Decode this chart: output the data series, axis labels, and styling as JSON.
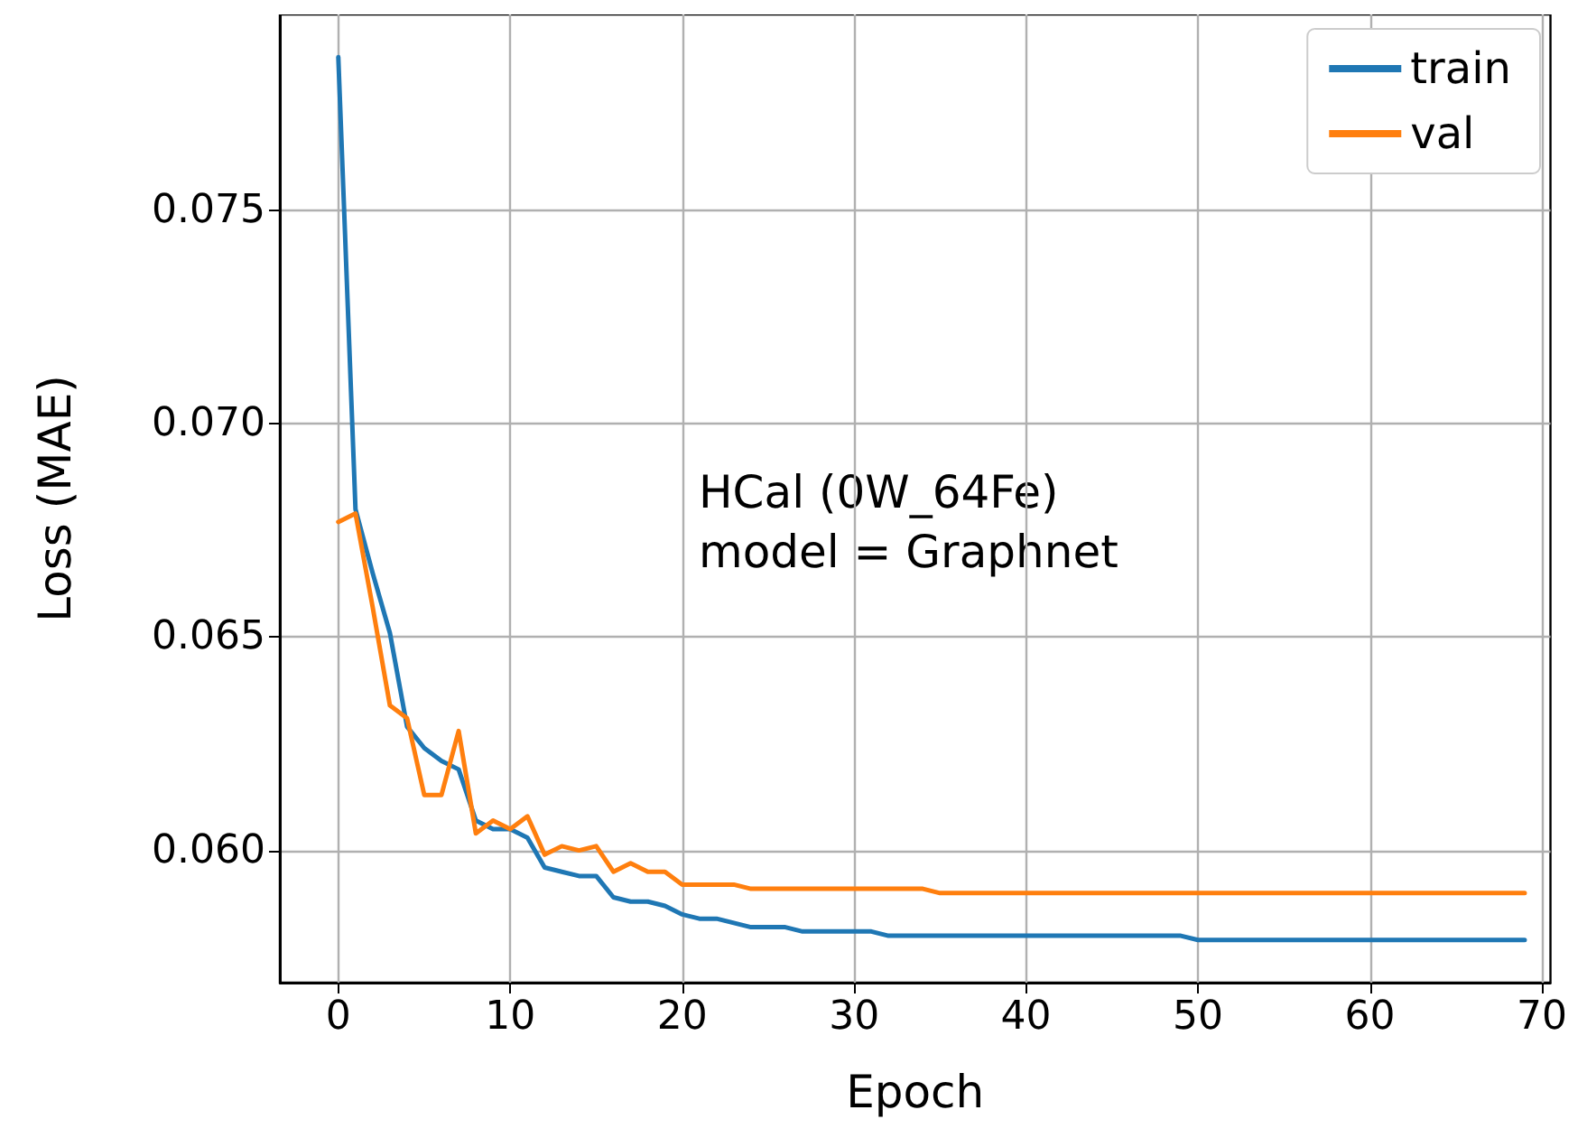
{
  "chart_data": {
    "type": "line",
    "xlabel": "Epoch",
    "ylabel": "Loss (MAE)",
    "annotations": [
      "HCal (0W_64Fe)\nmodel = Graphnet"
    ],
    "x": [
      0,
      1,
      2,
      3,
      4,
      5,
      6,
      7,
      8,
      9,
      10,
      11,
      12,
      13,
      14,
      15,
      16,
      17,
      18,
      19,
      20,
      21,
      22,
      23,
      24,
      25,
      26,
      27,
      28,
      29,
      30,
      31,
      32,
      33,
      34,
      35,
      36,
      37,
      38,
      39,
      40,
      41,
      42,
      43,
      44,
      45,
      46,
      47,
      48,
      49,
      50,
      51,
      52,
      53,
      54,
      55,
      56,
      57,
      58,
      59,
      60,
      61,
      62,
      63,
      64,
      65,
      66,
      67,
      68,
      69
    ],
    "series": [
      {
        "name": "train",
        "color": "#1f77b4",
        "values": [
          0.0786,
          0.068,
          0.0665,
          0.0651,
          0.0629,
          0.0624,
          0.0621,
          0.0619,
          0.0607,
          0.0605,
          0.0605,
          0.0603,
          0.0596,
          0.0595,
          0.0594,
          0.0594,
          0.0589,
          0.0588,
          0.0588,
          0.0587,
          0.0585,
          0.0584,
          0.0584,
          0.0583,
          0.0582,
          0.0582,
          0.0582,
          0.0581,
          0.0581,
          0.0581,
          0.0581,
          0.0581,
          0.058,
          0.058,
          0.058,
          0.058,
          0.058,
          0.058,
          0.058,
          0.058,
          0.058,
          0.058,
          0.058,
          0.058,
          0.058,
          0.058,
          0.058,
          0.058,
          0.058,
          0.058,
          0.0579,
          0.0579,
          0.0579,
          0.0579,
          0.0579,
          0.0579,
          0.0579,
          0.0579,
          0.0579,
          0.0579,
          0.0579,
          0.0579,
          0.0579,
          0.0579,
          0.0579,
          0.0579,
          0.0579,
          0.0579,
          0.0579,
          0.0579
        ]
      },
      {
        "name": "val",
        "color": "#ff7f0e",
        "values": [
          0.0677,
          0.0679,
          0.0657,
          0.0634,
          0.0631,
          0.0613,
          0.0613,
          0.0628,
          0.0604,
          0.0607,
          0.0605,
          0.0608,
          0.0599,
          0.0601,
          0.06,
          0.0601,
          0.0595,
          0.0597,
          0.0595,
          0.0595,
          0.0592,
          0.0592,
          0.0592,
          0.0592,
          0.0591,
          0.0591,
          0.0591,
          0.0591,
          0.0591,
          0.0591,
          0.0591,
          0.0591,
          0.0591,
          0.0591,
          0.0591,
          0.059,
          0.059,
          0.059,
          0.059,
          0.059,
          0.059,
          0.059,
          0.059,
          0.059,
          0.059,
          0.059,
          0.059,
          0.059,
          0.059,
          0.059,
          0.059,
          0.059,
          0.059,
          0.059,
          0.059,
          0.059,
          0.059,
          0.059,
          0.059,
          0.059,
          0.059,
          0.059,
          0.059,
          0.059,
          0.059,
          0.059,
          0.059,
          0.059,
          0.059,
          0.059
        ]
      }
    ],
    "xlim": [
      -3.4,
      70.5
    ],
    "xticks": [
      0,
      10,
      20,
      30,
      40,
      50,
      60,
      70
    ],
    "ylim": [
      0.0569,
      0.0796
    ],
    "yticks": [
      {
        "value": 0.06,
        "label": "0.060"
      },
      {
        "value": 0.065,
        "label": "0.065"
      },
      {
        "value": 0.07,
        "label": "0.070"
      },
      {
        "value": 0.075,
        "label": "0.075"
      }
    ],
    "grid": true,
    "legend": "top right",
    "marker": "none",
    "line_style": "solid"
  }
}
